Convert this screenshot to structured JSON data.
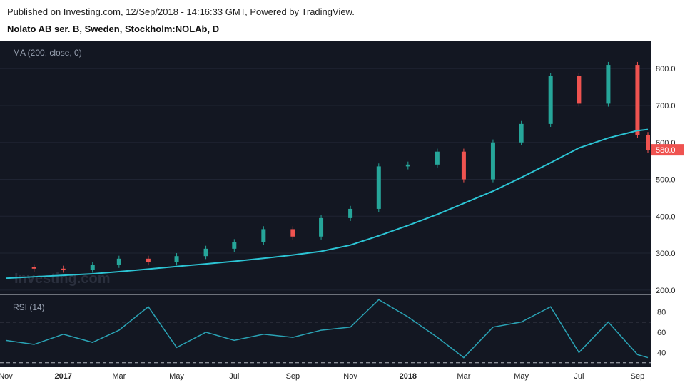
{
  "header": {
    "published": "Published on Investing.com, 12/Sep/2018 - 14:16:33 GMT, Powered by TradingView.",
    "symbol": "Nolato AB ser. B, Sweden, Stockholm:NOLAb, D"
  },
  "watermark": "Investing.com",
  "colors": {
    "background": "#131722",
    "up": "#26a69a",
    "down": "#ef5350",
    "ma": "#2cc4d4",
    "rsi": "#2aa3b5",
    "last_price_bg": "#ef5350"
  },
  "chart_data": [
    {
      "type": "candlestick",
      "title": "MA (200, close, 0)",
      "ylim": [
        190,
        870
      ],
      "yticks": [
        "800.0",
        "700.0",
        "600.0",
        "500.0",
        "400.0",
        "300.0",
        "200.0"
      ],
      "last_price_label": "580.0",
      "x": [
        "2016-11-01",
        "2016-12-01",
        "2017-01-01",
        "2017-02-01",
        "2017-03-01",
        "2017-04-01",
        "2017-05-01",
        "2017-06-01",
        "2017-07-01",
        "2017-08-01",
        "2017-09-01",
        "2017-10-01",
        "2017-11-01",
        "2017-12-01",
        "2018-01-01",
        "2018-02-01",
        "2018-03-01",
        "2018-04-01",
        "2018-05-01",
        "2018-06-01",
        "2018-07-01",
        "2018-08-01",
        "2018-09-01",
        "2018-09-12"
      ],
      "close": [
        262,
        258,
        255,
        268,
        285,
        275,
        292,
        312,
        330,
        365,
        345,
        395,
        420,
        535,
        540,
        575,
        500,
        600,
        650,
        780,
        705,
        810,
        620,
        580
      ],
      "series": [
        {
          "name": "MA (200, close, 0)",
          "values": [
            232,
            236,
            240,
            244,
            250,
            257,
            264,
            271,
            278,
            286,
            295,
            305,
            322,
            347,
            375,
            405,
            435,
            468,
            505,
            545,
            585,
            612,
            632,
            635
          ]
        }
      ]
    },
    {
      "type": "line",
      "title": "RSI (14)",
      "ylim": [
        27,
        95
      ],
      "yticks": [
        "80",
        "60",
        "40"
      ],
      "levels": [
        70,
        30
      ],
      "x": [
        "2016-11-01",
        "2016-12-01",
        "2017-01-01",
        "2017-02-01",
        "2017-03-01",
        "2017-04-01",
        "2017-05-01",
        "2017-06-01",
        "2017-07-01",
        "2017-08-01",
        "2017-09-01",
        "2017-10-01",
        "2017-11-01",
        "2017-12-01",
        "2018-01-01",
        "2018-02-01",
        "2018-03-01",
        "2018-04-01",
        "2018-05-01",
        "2018-06-01",
        "2018-07-01",
        "2018-08-01",
        "2018-09-01",
        "2018-09-12"
      ],
      "values": [
        52,
        48,
        58,
        50,
        62,
        85,
        45,
        60,
        52,
        58,
        55,
        62,
        65,
        92,
        75,
        55,
        35,
        65,
        70,
        85,
        40,
        70,
        38,
        35
      ],
      "x_tick_labels": [
        "Nov",
        "2017",
        "Mar",
        "May",
        "Jul",
        "Sep",
        "Nov",
        "2018",
        "Mar",
        "May",
        "Jul",
        "Sep"
      ]
    }
  ]
}
